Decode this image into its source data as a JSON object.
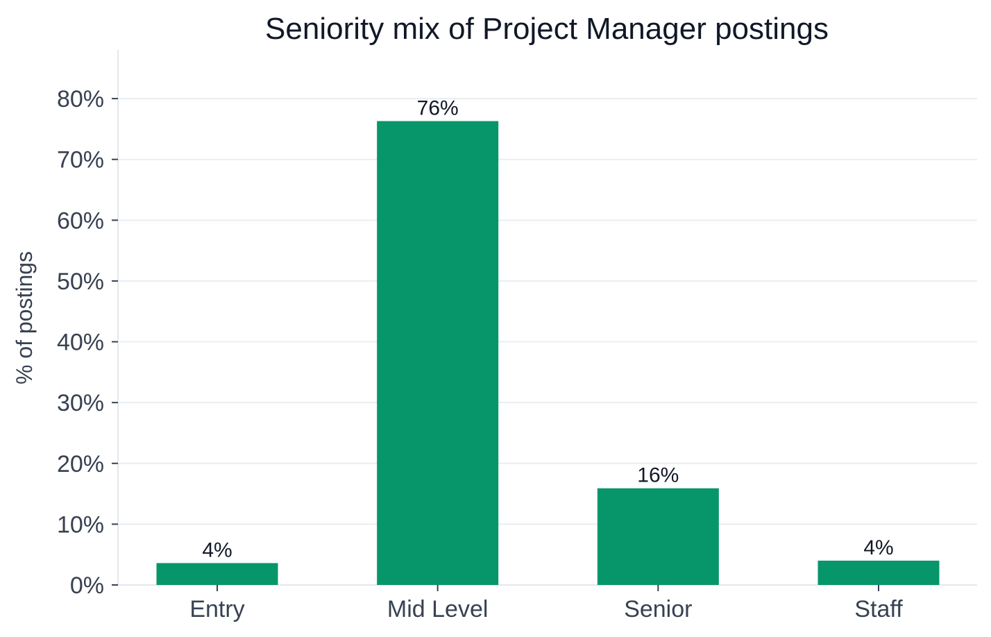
{
  "chart_data": {
    "type": "bar",
    "title": "Seniority mix of Project Manager postings",
    "xlabel": "",
    "ylabel": "% of postings",
    "categories": [
      "Entry",
      "Mid Level",
      "Senior",
      "Staff"
    ],
    "values": [
      3.6,
      76.3,
      15.9,
      4.0
    ],
    "value_labels": [
      "4%",
      "76%",
      "16%",
      "4%"
    ],
    "yticks": [
      0,
      10,
      20,
      30,
      40,
      50,
      60,
      70,
      80
    ],
    "ytick_labels": [
      "0%",
      "10%",
      "20%",
      "30%",
      "40%",
      "50%",
      "60%",
      "70%",
      "80%"
    ],
    "ylim": [
      0,
      88
    ],
    "grid": true,
    "bar_color": "#07966a"
  }
}
